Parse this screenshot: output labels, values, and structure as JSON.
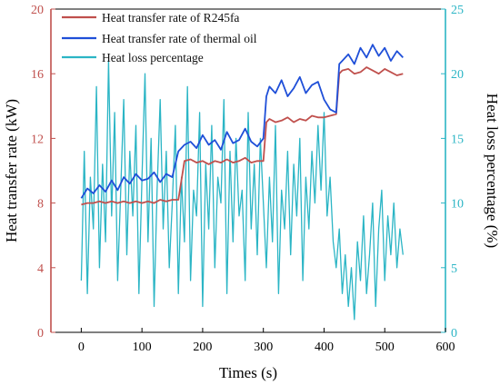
{
  "chart_data": {
    "type": "line",
    "xlabel": "Times (s)",
    "ylabel_left": "Heat transfer rate (kW)",
    "ylabel_right": "Heat loss percentage (%)",
    "xlim": [
      -50,
      600
    ],
    "ylim_left": [
      0,
      20
    ],
    "ylim_right": [
      0,
      25
    ],
    "x_ticks": [
      0,
      100,
      200,
      300,
      400,
      500,
      600
    ],
    "y_left_ticks": [
      0,
      4,
      8,
      12,
      16,
      20
    ],
    "y_right_ticks": [
      0,
      5,
      10,
      15,
      20,
      25
    ],
    "grid": false,
    "legend_position": "top-left",
    "left_axis_color": "#c0504d",
    "right_axis_color": "#2bb5c5",
    "series": [
      {
        "name": "Heat transfer rate of R245fa",
        "axis": "left",
        "color": "#c0504d",
        "x": [
          0,
          10,
          20,
          30,
          40,
          50,
          60,
          70,
          80,
          90,
          100,
          110,
          120,
          130,
          140,
          150,
          160,
          170,
          180,
          190,
          200,
          210,
          220,
          230,
          240,
          250,
          260,
          270,
          280,
          290,
          300,
          305,
          310,
          320,
          330,
          340,
          350,
          360,
          370,
          380,
          390,
          400,
          410,
          420,
          425,
          430,
          440,
          450,
          460,
          470,
          480,
          490,
          500,
          510,
          520,
          530
        ],
        "y": [
          7.9,
          8.0,
          8.0,
          8.1,
          8.0,
          8.1,
          8.0,
          8.1,
          8.0,
          8.1,
          8.0,
          8.1,
          8.0,
          8.2,
          8.1,
          8.2,
          8.2,
          10.6,
          10.7,
          10.5,
          10.6,
          10.4,
          10.6,
          10.5,
          10.7,
          10.5,
          10.6,
          10.8,
          10.5,
          10.6,
          10.6,
          13.0,
          13.2,
          13.0,
          13.1,
          13.3,
          13.0,
          13.2,
          13.1,
          13.4,
          13.3,
          13.3,
          13.4,
          13.5,
          16.0,
          16.2,
          16.3,
          16.0,
          16.1,
          16.4,
          16.2,
          16.0,
          16.3,
          16.1,
          15.9,
          16.0
        ]
      },
      {
        "name": "Heat transfer rate of thermal oil",
        "axis": "left",
        "color": "#1f4fd8",
        "x": [
          0,
          10,
          20,
          30,
          40,
          50,
          60,
          70,
          80,
          90,
          100,
          110,
          120,
          130,
          140,
          150,
          160,
          170,
          180,
          190,
          200,
          210,
          220,
          230,
          240,
          250,
          260,
          270,
          280,
          290,
          300,
          305,
          310,
          320,
          330,
          340,
          350,
          360,
          370,
          380,
          390,
          400,
          410,
          420,
          425,
          430,
          440,
          450,
          460,
          470,
          480,
          490,
          500,
          510,
          520,
          530
        ],
        "y": [
          8.3,
          8.9,
          8.6,
          9.1,
          8.7,
          9.4,
          8.8,
          9.6,
          9.2,
          9.8,
          9.4,
          9.5,
          9.9,
          9.3,
          9.8,
          9.6,
          11.2,
          11.6,
          11.8,
          11.4,
          12.2,
          11.6,
          11.9,
          11.3,
          12.4,
          11.7,
          11.9,
          12.6,
          11.8,
          11.5,
          12.0,
          14.6,
          15.2,
          14.8,
          15.6,
          14.6,
          15.1,
          15.8,
          14.8,
          15.3,
          15.5,
          14.4,
          13.8,
          13.6,
          16.6,
          16.8,
          17.2,
          16.6,
          17.6,
          17.0,
          17.8,
          17.1,
          17.6,
          16.8,
          17.4,
          17.0
        ]
      },
      {
        "name": "Heat loss percentage",
        "axis": "right",
        "color": "#2bb5c5",
        "x": [
          0,
          5,
          10,
          15,
          20,
          25,
          30,
          35,
          40,
          45,
          50,
          55,
          60,
          65,
          70,
          75,
          80,
          85,
          90,
          95,
          100,
          105,
          110,
          115,
          120,
          125,
          130,
          135,
          140,
          145,
          150,
          155,
          160,
          165,
          170,
          175,
          180,
          185,
          190,
          195,
          200,
          205,
          210,
          215,
          220,
          225,
          230,
          235,
          240,
          245,
          250,
          255,
          260,
          265,
          270,
          275,
          280,
          285,
          290,
          295,
          300,
          305,
          310,
          315,
          320,
          325,
          330,
          335,
          340,
          345,
          350,
          355,
          360,
          365,
          370,
          375,
          380,
          385,
          390,
          395,
          400,
          405,
          410,
          415,
          420,
          425,
          430,
          435,
          440,
          445,
          450,
          455,
          460,
          465,
          470,
          475,
          480,
          485,
          490,
          495,
          500,
          505,
          510,
          515,
          520,
          525,
          530
        ],
        "y": [
          4,
          14,
          3,
          12,
          8,
          19,
          5,
          13,
          7,
          21,
          9,
          17,
          4,
          11,
          18,
          6,
          14,
          9,
          16,
          3,
          12,
          20,
          7,
          15,
          2,
          11,
          18,
          8,
          14,
          5,
          10,
          16,
          3,
          12,
          7,
          19,
          4,
          11,
          9,
          17,
          2,
          13,
          8,
          16,
          5,
          12,
          10,
          18,
          3,
          14,
          7,
          15,
          9,
          11,
          4,
          17,
          8,
          13,
          6,
          15,
          10,
          5,
          12,
          7,
          16,
          3,
          11,
          8,
          14,
          6,
          13,
          9,
          15,
          4,
          12,
          8,
          14,
          10,
          16,
          11,
          17,
          9,
          12,
          7,
          5,
          8,
          3,
          6,
          2,
          5,
          1,
          7,
          4,
          9,
          3,
          6,
          10,
          2,
          8,
          11,
          4,
          9,
          6,
          10,
          5,
          8,
          6
        ]
      }
    ]
  }
}
